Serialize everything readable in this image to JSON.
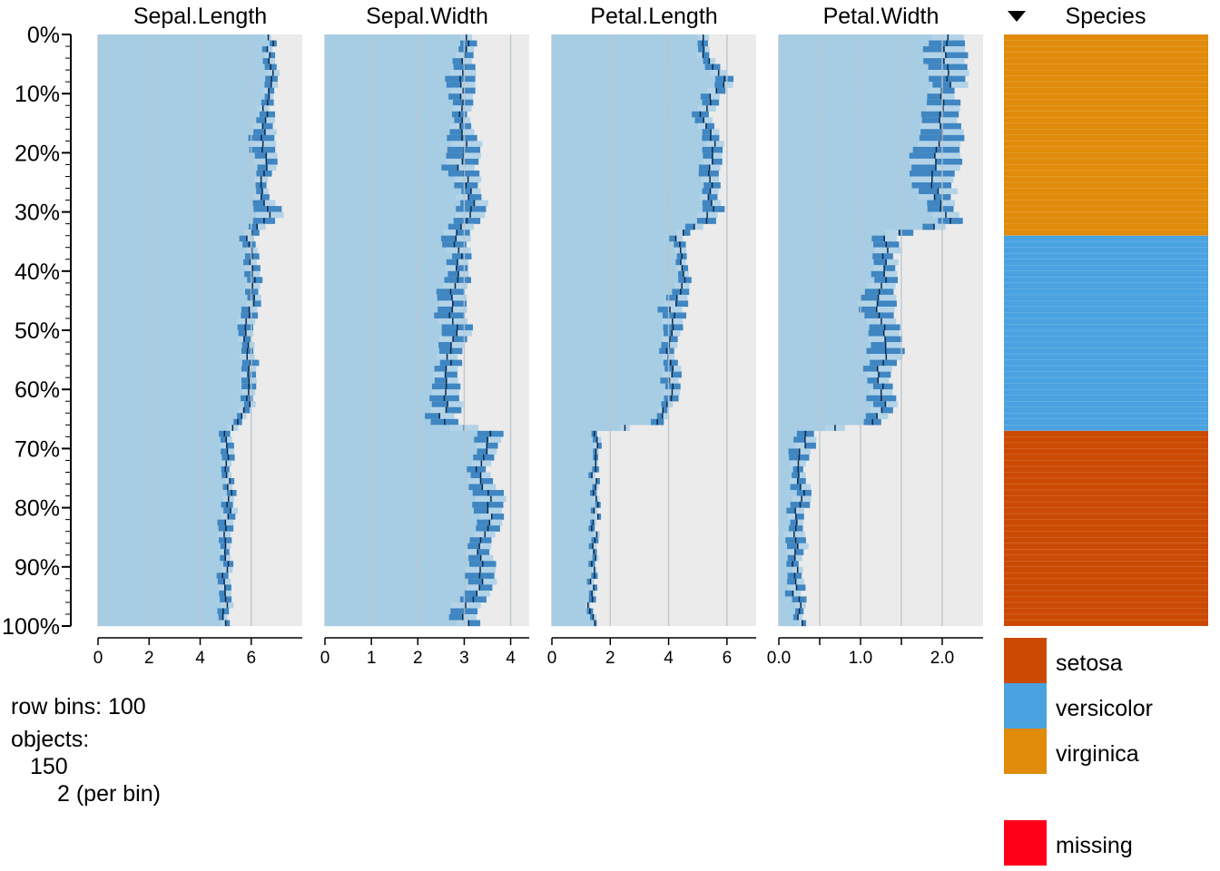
{
  "chart_data": {
    "type": "tableplot",
    "row_bins": 100,
    "y_ticks": [
      "0%",
      "10%",
      "20%",
      "30%",
      "40%",
      "50%",
      "60%",
      "70%",
      "80%",
      "90%",
      "100%"
    ],
    "sort": {
      "column": "Species",
      "direction": "descending"
    },
    "colors": {
      "bar_light": "#b3d3e8",
      "bar_dark": "#3f86c2",
      "mean_fill": "#a6cde4",
      "panel_bg": "#ebebeb",
      "grid": "#b9c5cf",
      "setosa": "#cb4a03",
      "versicolor": "#4aa3e0",
      "virginica": "#e08b0a",
      "missing": "#ff0019"
    },
    "panels": [
      {
        "name": "Sepal.Length",
        "xlim": [
          0,
          8
        ],
        "ticks": [
          0,
          2,
          4,
          6
        ],
        "tick_labels": [
          "0",
          "2",
          "4",
          "6"
        ],
        "grid": [
          0,
          2,
          4,
          6
        ],
        "mean": [
          [
            0,
            6.8
          ],
          [
            4,
            6.7
          ],
          [
            8,
            6.9
          ],
          [
            10,
            6.6
          ],
          [
            14,
            6.5
          ],
          [
            18,
            6.4
          ],
          [
            22,
            6.6
          ],
          [
            26,
            6.4
          ],
          [
            30,
            6.7
          ],
          [
            33,
            6.2
          ],
          [
            34,
            5.9
          ],
          [
            36,
            5.9
          ],
          [
            40,
            6.0
          ],
          [
            44,
            6.1
          ],
          [
            48,
            5.9
          ],
          [
            52,
            5.8
          ],
          [
            56,
            5.9
          ],
          [
            60,
            6.0
          ],
          [
            64,
            5.8
          ],
          [
            66,
            5.5
          ],
          [
            67,
            5.0
          ],
          [
            70,
            5.1
          ],
          [
            74,
            5.1
          ],
          [
            78,
            5.2
          ],
          [
            82,
            5.1
          ],
          [
            86,
            5.0
          ],
          [
            90,
            5.0
          ],
          [
            94,
            4.9
          ],
          [
            98,
            5.0
          ],
          [
            100,
            5.0
          ]
        ],
        "sd": [
          0.1,
          0.2,
          0.25,
          0.15,
          0.3,
          0.5,
          0.4,
          0.15,
          0.6,
          0.25,
          0.3,
          0.2,
          0.3,
          0.25,
          0.35,
          0.2,
          0.3,
          0.25,
          0.2,
          0.15,
          0.2,
          0.25,
          0.15,
          0.2,
          0.3,
          0.2,
          0.15,
          0.25,
          0.2,
          0.1
        ]
      },
      {
        "name": "Sepal.Width",
        "xlim": [
          0,
          4.4
        ],
        "ticks": [
          0,
          1,
          2,
          3,
          4
        ],
        "tick_labels": [
          "0",
          "1",
          "2",
          "3",
          "4"
        ],
        "grid": [
          0,
          1,
          2,
          3,
          4
        ],
        "mean": [
          [
            0,
            3.1
          ],
          [
            4,
            3.0
          ],
          [
            8,
            2.9
          ],
          [
            10,
            3.0
          ],
          [
            14,
            2.9
          ],
          [
            18,
            3.0
          ],
          [
            22,
            2.9
          ],
          [
            26,
            3.1
          ],
          [
            30,
            3.2
          ],
          [
            33,
            2.9
          ],
          [
            34,
            2.8
          ],
          [
            38,
            2.9
          ],
          [
            42,
            2.8
          ],
          [
            46,
            2.7
          ],
          [
            50,
            2.8
          ],
          [
            54,
            2.7
          ],
          [
            58,
            2.6
          ],
          [
            62,
            2.6
          ],
          [
            65,
            2.5
          ],
          [
            66,
            2.6
          ],
          [
            67,
            3.5
          ],
          [
            70,
            3.5
          ],
          [
            74,
            3.3
          ],
          [
            78,
            3.5
          ],
          [
            82,
            3.6
          ],
          [
            86,
            3.3
          ],
          [
            90,
            3.4
          ],
          [
            94,
            3.3
          ],
          [
            98,
            2.9
          ],
          [
            100,
            3.2
          ]
        ],
        "sd": [
          0.1,
          0.2,
          0.3,
          0.25,
          0.15,
          0.3,
          0.35,
          0.2,
          0.3,
          0.25,
          0.3,
          0.2,
          0.25,
          0.3,
          0.3,
          0.2,
          0.25,
          0.3,
          0.3,
          0.25,
          0.3,
          0.2,
          0.2,
          0.35,
          0.25,
          0.2,
          0.3,
          0.25,
          0.3,
          0.2
        ]
      },
      {
        "name": "Petal.Length",
        "xlim": [
          0,
          7
        ],
        "ticks": [
          0,
          2,
          4,
          6
        ],
        "tick_labels": [
          "0",
          "2",
          "4",
          "6"
        ],
        "grid": [
          0,
          2,
          4,
          6
        ],
        "mean": [
          [
            0,
            5.3
          ],
          [
            4,
            5.2
          ],
          [
            8,
            6.0
          ],
          [
            10,
            5.5
          ],
          [
            14,
            5.1
          ],
          [
            18,
            5.5
          ],
          [
            22,
            5.5
          ],
          [
            26,
            5.4
          ],
          [
            30,
            5.5
          ],
          [
            32,
            5.2
          ],
          [
            34,
            4.3
          ],
          [
            38,
            4.4
          ],
          [
            42,
            4.6
          ],
          [
            46,
            4.1
          ],
          [
            50,
            4.1
          ],
          [
            54,
            4.0
          ],
          [
            58,
            4.1
          ],
          [
            62,
            4.0
          ],
          [
            64,
            3.8
          ],
          [
            66,
            3.5
          ],
          [
            67,
            1.5
          ],
          [
            70,
            1.5
          ],
          [
            74,
            1.4
          ],
          [
            78,
            1.5
          ],
          [
            82,
            1.5
          ],
          [
            86,
            1.4
          ],
          [
            90,
            1.4
          ],
          [
            94,
            1.4
          ],
          [
            98,
            1.3
          ],
          [
            100,
            1.4
          ]
        ],
        "sd": [
          0.15,
          0.2,
          0.3,
          0.3,
          0.25,
          0.3,
          0.35,
          0.25,
          0.35,
          0.3,
          0.2,
          0.15,
          0.2,
          0.4,
          0.3,
          0.2,
          0.3,
          0.2,
          0.15,
          0.2,
          0.1,
          0.1,
          0.08,
          0.1,
          0.08,
          0.1,
          0.08,
          0.1,
          0.08,
          0.05
        ]
      },
      {
        "name": "Petal.Width",
        "xlim": [
          0,
          2.5
        ],
        "ticks": [
          0,
          0.5,
          1,
          1.5,
          2
        ],
        "tick_labels": [
          "0.0",
          "",
          "1.0",
          "",
          "2.0"
        ],
        "grid": [
          0,
          0.5,
          1,
          1.5,
          2
        ],
        "mean": [
          [
            0,
            2.1
          ],
          [
            4,
            2.0
          ],
          [
            8,
            2.1
          ],
          [
            10,
            2.0
          ],
          [
            14,
            2.0
          ],
          [
            18,
            2.0
          ],
          [
            22,
            1.9
          ],
          [
            26,
            1.9
          ],
          [
            30,
            2.0
          ],
          [
            32,
            2.1
          ],
          [
            34,
            1.3
          ],
          [
            38,
            1.3
          ],
          [
            42,
            1.3
          ],
          [
            46,
            1.2
          ],
          [
            50,
            1.3
          ],
          [
            54,
            1.3
          ],
          [
            58,
            1.2
          ],
          [
            62,
            1.3
          ],
          [
            64,
            1.2
          ],
          [
            66,
            1.1
          ],
          [
            67,
            0.3
          ],
          [
            70,
            0.3
          ],
          [
            74,
            0.2
          ],
          [
            78,
            0.3
          ],
          [
            82,
            0.2
          ],
          [
            86,
            0.2
          ],
          [
            90,
            0.2
          ],
          [
            94,
            0.2
          ],
          [
            98,
            0.25
          ],
          [
            100,
            0.3
          ]
        ],
        "sd": [
          0.15,
          0.25,
          0.2,
          0.15,
          0.2,
          0.25,
          0.3,
          0.2,
          0.15,
          0.1,
          0.15,
          0.1,
          0.15,
          0.2,
          0.15,
          0.2,
          0.1,
          0.15,
          0.1,
          0.1,
          0.1,
          0.1,
          0.05,
          0.1,
          0.08,
          0.1,
          0.05,
          0.08,
          0.05,
          0.05
        ]
      }
    ],
    "species_panel": {
      "name": "Species",
      "segments": [
        {
          "category": "virginica",
          "from": 0,
          "to": 34
        },
        {
          "category": "versicolor",
          "from": 34,
          "to": 67
        },
        {
          "category": "setosa",
          "from": 67,
          "to": 100
        }
      ],
      "legend": [
        "setosa",
        "versicolor",
        "virginica"
      ],
      "missing_label": "missing"
    }
  },
  "info": {
    "row_bins_label": "row bins: 100",
    "objects_label": "objects:",
    "objects_count": "150",
    "per_bin": "2 (per bin)"
  }
}
